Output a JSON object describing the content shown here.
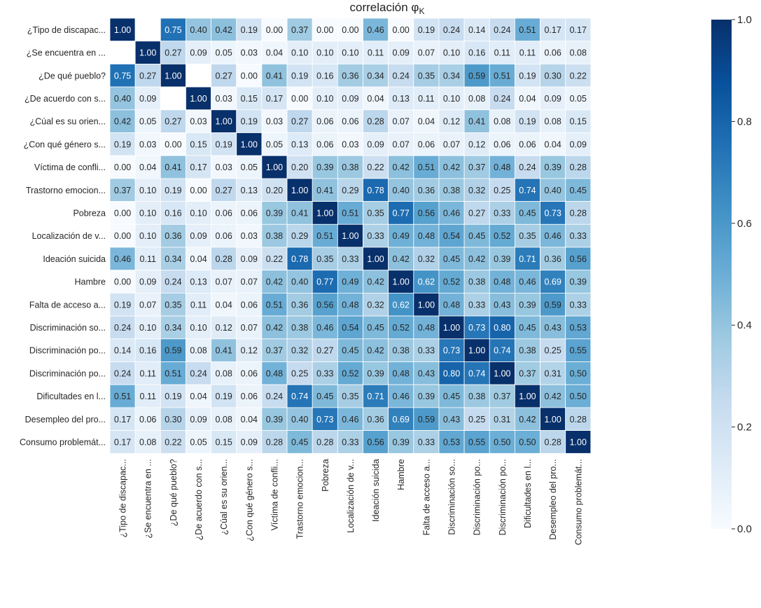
{
  "chart_data": {
    "type": "heatmap",
    "title": "correlación φ",
    "title_subscript": "K",
    "labels": [
      "¿Tipo de discapac...",
      "¿Se encuentra en ...",
      "¿De qué pueblo?",
      "¿De acuerdo con s...",
      "¿Cúal es su orien...",
      "¿Con qué género s...",
      "Víctima de confli...",
      "Trastorno emocion...",
      "Pobreza",
      "Localización de v...",
      "Ideación suicida",
      "Hambre",
      "Falta de acceso a...",
      "Discriminación so...",
      "Discriminación po...",
      "Discriminación po...",
      "Dificultades en l...",
      "Desempleo del pro...",
      "Consumo problemát..."
    ],
    "matrix": [
      [
        1.0,
        null,
        0.75,
        0.4,
        0.42,
        0.19,
        0.0,
        0.37,
        0.0,
        0.0,
        0.46,
        0.0,
        0.19,
        0.24,
        0.14,
        0.24,
        0.51,
        0.17,
        0.17
      ],
      [
        null,
        1.0,
        0.27,
        0.09,
        0.05,
        0.03,
        0.04,
        0.1,
        0.1,
        0.1,
        0.11,
        0.09,
        0.07,
        0.1,
        0.16,
        0.11,
        0.11,
        0.06,
        0.08
      ],
      [
        0.75,
        0.27,
        1.0,
        null,
        0.27,
        0.0,
        0.41,
        0.19,
        0.16,
        0.36,
        0.34,
        0.24,
        0.35,
        0.34,
        0.59,
        0.51,
        0.19,
        0.3,
        0.22
      ],
      [
        0.4,
        0.09,
        null,
        1.0,
        0.03,
        0.15,
        0.17,
        0.0,
        0.1,
        0.09,
        0.04,
        0.13,
        0.11,
        0.1,
        0.08,
        0.24,
        0.04,
        0.09,
        0.05
      ],
      [
        0.42,
        0.05,
        0.27,
        0.03,
        1.0,
        0.19,
        0.03,
        0.27,
        0.06,
        0.06,
        0.28,
        0.07,
        0.04,
        0.12,
        0.41,
        0.08,
        0.19,
        0.08,
        0.15
      ],
      [
        0.19,
        0.03,
        0.0,
        0.15,
        0.19,
        1.0,
        0.05,
        0.13,
        0.06,
        0.03,
        0.09,
        0.07,
        0.06,
        0.07,
        0.12,
        0.06,
        0.06,
        0.04,
        0.09
      ],
      [
        0.0,
        0.04,
        0.41,
        0.17,
        0.03,
        0.05,
        1.0,
        0.2,
        0.39,
        0.38,
        0.22,
        0.42,
        0.51,
        0.42,
        0.37,
        0.48,
        0.24,
        0.39,
        0.28
      ],
      [
        0.37,
        0.1,
        0.19,
        0.0,
        0.27,
        0.13,
        0.2,
        1.0,
        0.41,
        0.29,
        0.78,
        0.4,
        0.36,
        0.38,
        0.32,
        0.25,
        0.74,
        0.4,
        0.45
      ],
      [
        0.0,
        0.1,
        0.16,
        0.1,
        0.06,
        0.06,
        0.39,
        0.41,
        1.0,
        0.51,
        0.35,
        0.77,
        0.56,
        0.46,
        0.27,
        0.33,
        0.45,
        0.73,
        0.28
      ],
      [
        0.0,
        0.1,
        0.36,
        0.09,
        0.06,
        0.03,
        0.38,
        0.29,
        0.51,
        1.0,
        0.33,
        0.49,
        0.48,
        0.54,
        0.45,
        0.52,
        0.35,
        0.46,
        0.33
      ],
      [
        0.46,
        0.11,
        0.34,
        0.04,
        0.28,
        0.09,
        0.22,
        0.78,
        0.35,
        0.33,
        1.0,
        0.42,
        0.32,
        0.45,
        0.42,
        0.39,
        0.71,
        0.36,
        0.56
      ],
      [
        0.0,
        0.09,
        0.24,
        0.13,
        0.07,
        0.07,
        0.42,
        0.4,
        0.77,
        0.49,
        0.42,
        1.0,
        0.62,
        0.52,
        0.38,
        0.48,
        0.46,
        0.69,
        0.39
      ],
      [
        0.19,
        0.07,
        0.35,
        0.11,
        0.04,
        0.06,
        0.51,
        0.36,
        0.56,
        0.48,
        0.32,
        0.62,
        1.0,
        0.48,
        0.33,
        0.43,
        0.39,
        0.59,
        0.33
      ],
      [
        0.24,
        0.1,
        0.34,
        0.1,
        0.12,
        0.07,
        0.42,
        0.38,
        0.46,
        0.54,
        0.45,
        0.52,
        0.48,
        1.0,
        0.73,
        0.8,
        0.45,
        0.43,
        0.53
      ],
      [
        0.14,
        0.16,
        0.59,
        0.08,
        0.41,
        0.12,
        0.37,
        0.32,
        0.27,
        0.45,
        0.42,
        0.38,
        0.33,
        0.73,
        1.0,
        0.74,
        0.38,
        0.25,
        0.55
      ],
      [
        0.24,
        0.11,
        0.51,
        0.24,
        0.08,
        0.06,
        0.48,
        0.25,
        0.33,
        0.52,
        0.39,
        0.48,
        0.43,
        0.8,
        0.74,
        1.0,
        0.37,
        0.31,
        0.5
      ],
      [
        0.51,
        0.11,
        0.19,
        0.04,
        0.19,
        0.06,
        0.24,
        0.74,
        0.45,
        0.35,
        0.71,
        0.46,
        0.39,
        0.45,
        0.38,
        0.37,
        1.0,
        0.42,
        0.5
      ],
      [
        0.17,
        0.06,
        0.3,
        0.09,
        0.08,
        0.04,
        0.39,
        0.4,
        0.73,
        0.46,
        0.36,
        0.69,
        0.59,
        0.43,
        0.25,
        0.31,
        0.42,
        1.0,
        0.28
      ],
      [
        0.17,
        0.08,
        0.22,
        0.05,
        0.15,
        0.09,
        0.28,
        0.45,
        0.28,
        0.33,
        0.56,
        0.39,
        0.33,
        0.53,
        0.55,
        0.5,
        0.5,
        0.28,
        1.0
      ]
    ],
    "colorbar": {
      "range": [
        0,
        1
      ],
      "ticks": [
        "0.0",
        "0.2",
        "0.4",
        "0.6",
        "0.8",
        "1.0"
      ],
      "colormap": "Blues"
    },
    "value_format": "2 decimals",
    "grid": true
  },
  "colors": {
    "cmap_stops": [
      "#f7fbff",
      "#deebf7",
      "#c6dbef",
      "#9ecae1",
      "#6baed6",
      "#4292c6",
      "#2171b5",
      "#08519c",
      "#08306b"
    ],
    "cell_border": "#ffffff",
    "text_dark": "#262626",
    "text_light": "#ffffff"
  }
}
